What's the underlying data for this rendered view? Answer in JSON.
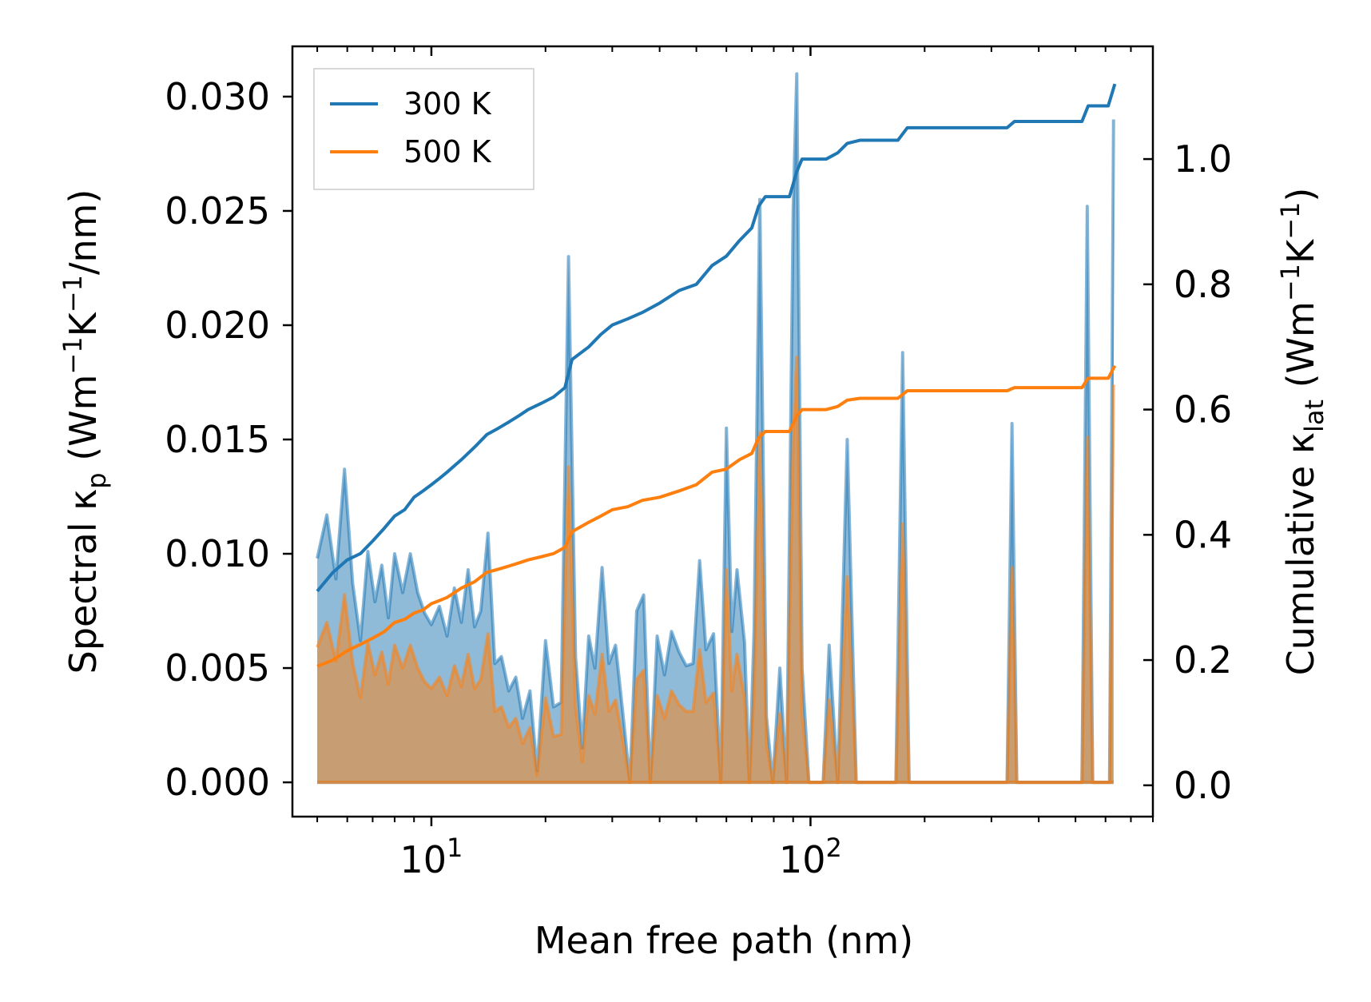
{
  "chart_data": {
    "type": "line",
    "xscale": "log",
    "xlabel": "Mean free path (nm)",
    "ylabel_left": {
      "main": "Spectral κ",
      "sub": "p",
      "units_open": " (Wm",
      "units_exp1": "−1",
      "units_mid": "K",
      "units_exp2": "−1",
      "units_close": "/nm)"
    },
    "ylabel_right": {
      "main": "Cumulative κ",
      "sub": "lat",
      "units_open": " (Wm",
      "units_exp1": "−1",
      "units_mid": "K",
      "units_exp2": "−1",
      "units_close": ")"
    },
    "xlim": [
      4.3,
      800
    ],
    "ylim_left": [
      -0.0015,
      0.0322
    ],
    "ylim_right": [
      -0.05,
      1.18
    ],
    "x_ticks": [
      {
        "value": 10,
        "base": "10",
        "exp": "1"
      },
      {
        "value": 100,
        "base": "10",
        "exp": "2"
      }
    ],
    "y_ticks_left": [
      "0.000",
      "0.005",
      "0.010",
      "0.015",
      "0.020",
      "0.025",
      "0.030"
    ],
    "y_ticks_right": [
      "0.0",
      "0.2",
      "0.4",
      "0.6",
      "0.8",
      "1.0"
    ],
    "legend": {
      "position": "upper-left",
      "entries": [
        "300 K",
        "500 K"
      ]
    },
    "series": [
      {
        "name": "300 K",
        "color": "#1f77b4",
        "spectral": [
          [
            5.0,
            0.0098
          ],
          [
            5.3,
            0.0117
          ],
          [
            5.6,
            0.0089
          ],
          [
            5.9,
            0.0137
          ],
          [
            6.2,
            0.0087
          ],
          [
            6.5,
            0.0062
          ],
          [
            6.8,
            0.0101
          ],
          [
            7.1,
            0.0079
          ],
          [
            7.4,
            0.0095
          ],
          [
            7.7,
            0.0072
          ],
          [
            8.0,
            0.01
          ],
          [
            8.4,
            0.0083
          ],
          [
            8.8,
            0.01
          ],
          [
            9.2,
            0.0083
          ],
          [
            9.6,
            0.0074
          ],
          [
            10.0,
            0.0069
          ],
          [
            10.5,
            0.0077
          ],
          [
            11.0,
            0.0064
          ],
          [
            11.5,
            0.0085
          ],
          [
            12.0,
            0.007
          ],
          [
            12.5,
            0.0093
          ],
          [
            13.0,
            0.0068
          ],
          [
            13.5,
            0.0075
          ],
          [
            14.1,
            0.0109
          ],
          [
            14.7,
            0.0052
          ],
          [
            15.3,
            0.0055
          ],
          [
            16.0,
            0.004
          ],
          [
            16.7,
            0.0046
          ],
          [
            17.4,
            0.0028
          ],
          [
            18.2,
            0.004
          ],
          [
            19.0,
            0.0005
          ],
          [
            20.0,
            0.0062
          ],
          [
            21.0,
            0.0033
          ],
          [
            22.0,
            0.0035
          ],
          [
            23.0,
            0.023
          ],
          [
            24.0,
            0.0055
          ],
          [
            25.0,
            0.0015
          ],
          [
            26.0,
            0.0064
          ],
          [
            27.0,
            0.005
          ],
          [
            28.2,
            0.0094
          ],
          [
            29.4,
            0.0052
          ],
          [
            30.6,
            0.006
          ],
          [
            32.0,
            0.003
          ],
          [
            33.4,
            0.0
          ],
          [
            34.8,
            0.0075
          ],
          [
            36.3,
            0.0082
          ],
          [
            37.8,
            0.0
          ],
          [
            39.4,
            0.0064
          ],
          [
            41.2,
            0.0047
          ],
          [
            43.0,
            0.0066
          ],
          [
            45.0,
            0.0057
          ],
          [
            47.0,
            0.0051
          ],
          [
            49.0,
            0.0052
          ],
          [
            51.0,
            0.0097
          ],
          [
            53.0,
            0.0058
          ],
          [
            55.5,
            0.0065
          ],
          [
            58.0,
            0.0
          ],
          [
            60.0,
            0.0155
          ],
          [
            62.0,
            0.0066
          ],
          [
            64.0,
            0.0093
          ],
          [
            67.0,
            0.0061
          ],
          [
            69.0,
            0.0
          ],
          [
            71.0,
            0.0067
          ],
          [
            73.5,
            0.0255
          ],
          [
            76.5,
            0.0029
          ],
          [
            79.5,
            0.0
          ],
          [
            83.0,
            0.005
          ],
          [
            86.5,
            0.0
          ],
          [
            90.0,
            0.025
          ],
          [
            92.0,
            0.031
          ],
          [
            95.0,
            0.005
          ],
          [
            99.0,
            0.0
          ],
          [
            108.0,
            0.0
          ],
          [
            112.0,
            0.006
          ],
          [
            118.0,
            0.0
          ],
          [
            125.0,
            0.015
          ],
          [
            132.0,
            0.0
          ],
          [
            168.0,
            0.0
          ],
          [
            175.0,
            0.0188
          ],
          [
            182.0,
            0.0
          ],
          [
            330.0,
            0.0
          ],
          [
            340.0,
            0.0157
          ],
          [
            350.0,
            0.0
          ],
          [
            520.0,
            0.0
          ],
          [
            537.0,
            0.0252
          ],
          [
            555.0,
            0.0
          ],
          [
            615.0,
            0.0
          ],
          [
            630.0,
            0.029
          ]
        ],
        "cumulative": [
          [
            5.0,
            0.31
          ],
          [
            5.5,
            0.34
          ],
          [
            6.0,
            0.36
          ],
          [
            6.5,
            0.37
          ],
          [
            7.0,
            0.39
          ],
          [
            7.5,
            0.41
          ],
          [
            8.0,
            0.43
          ],
          [
            8.5,
            0.44
          ],
          [
            9.0,
            0.46
          ],
          [
            9.5,
            0.47
          ],
          [
            10.0,
            0.48
          ],
          [
            10.5,
            0.49
          ],
          [
            11.0,
            0.5
          ],
          [
            12.0,
            0.52
          ],
          [
            13.0,
            0.54
          ],
          [
            14.0,
            0.56
          ],
          [
            15.0,
            0.57
          ],
          [
            16.0,
            0.58
          ],
          [
            17.0,
            0.59
          ],
          [
            18.0,
            0.6
          ],
          [
            19.5,
            0.61
          ],
          [
            21.0,
            0.62
          ],
          [
            22.5,
            0.635
          ],
          [
            23.5,
            0.68
          ],
          [
            26.0,
            0.7
          ],
          [
            28.0,
            0.72
          ],
          [
            30.0,
            0.735
          ],
          [
            33.0,
            0.745
          ],
          [
            36.0,
            0.755
          ],
          [
            40.0,
            0.77
          ],
          [
            45.0,
            0.79
          ],
          [
            50.0,
            0.8
          ],
          [
            55.0,
            0.83
          ],
          [
            60.0,
            0.845
          ],
          [
            65.0,
            0.87
          ],
          [
            70.0,
            0.89
          ],
          [
            73.0,
            0.925
          ],
          [
            76.0,
            0.94
          ],
          [
            88.0,
            0.94
          ],
          [
            92.0,
            0.98
          ],
          [
            95.0,
            1.0
          ],
          [
            110.0,
            1.0
          ],
          [
            118.0,
            1.01
          ],
          [
            125.0,
            1.025
          ],
          [
            135.0,
            1.03
          ],
          [
            170.0,
            1.03
          ],
          [
            180.0,
            1.05
          ],
          [
            330.0,
            1.05
          ],
          [
            345.0,
            1.06
          ],
          [
            520.0,
            1.06
          ],
          [
            540.0,
            1.085
          ],
          [
            610.0,
            1.085
          ],
          [
            635.0,
            1.12
          ]
        ]
      },
      {
        "name": "500 K",
        "color": "#ff7f0e",
        "spectral": [
          [
            5.0,
            0.0059
          ],
          [
            5.3,
            0.007
          ],
          [
            5.6,
            0.0053
          ],
          [
            5.9,
            0.0082
          ],
          [
            6.2,
            0.0052
          ],
          [
            6.5,
            0.0037
          ],
          [
            6.8,
            0.0061
          ],
          [
            7.1,
            0.0047
          ],
          [
            7.4,
            0.0057
          ],
          [
            7.7,
            0.0043
          ],
          [
            8.0,
            0.006
          ],
          [
            8.4,
            0.005
          ],
          [
            8.8,
            0.006
          ],
          [
            9.2,
            0.005
          ],
          [
            9.6,
            0.0044
          ],
          [
            10.0,
            0.0041
          ],
          [
            10.5,
            0.0046
          ],
          [
            11.0,
            0.0038
          ],
          [
            11.5,
            0.0051
          ],
          [
            12.0,
            0.0042
          ],
          [
            12.5,
            0.0056
          ],
          [
            13.0,
            0.0041
          ],
          [
            13.5,
            0.0045
          ],
          [
            14.1,
            0.0065
          ],
          [
            14.7,
            0.0031
          ],
          [
            15.3,
            0.0033
          ],
          [
            16.0,
            0.0024
          ],
          [
            16.7,
            0.0028
          ],
          [
            17.4,
            0.0017
          ],
          [
            18.2,
            0.0024
          ],
          [
            19.0,
            0.0003
          ],
          [
            20.0,
            0.0037
          ],
          [
            21.0,
            0.002
          ],
          [
            22.0,
            0.0021
          ],
          [
            23.0,
            0.0138
          ],
          [
            24.0,
            0.0033
          ],
          [
            25.0,
            0.0009
          ],
          [
            26.0,
            0.0038
          ],
          [
            27.0,
            0.003
          ],
          [
            28.2,
            0.0056
          ],
          [
            29.4,
            0.0031
          ],
          [
            30.6,
            0.0036
          ],
          [
            32.0,
            0.0018
          ],
          [
            33.4,
            0.0
          ],
          [
            34.8,
            0.0045
          ],
          [
            36.3,
            0.0049
          ],
          [
            37.8,
            0.0
          ],
          [
            39.4,
            0.0038
          ],
          [
            41.2,
            0.0028
          ],
          [
            43.0,
            0.004
          ],
          [
            45.0,
            0.0034
          ],
          [
            47.0,
            0.0031
          ],
          [
            49.0,
            0.0031
          ],
          [
            51.0,
            0.0058
          ],
          [
            53.0,
            0.0035
          ],
          [
            55.5,
            0.0039
          ],
          [
            58.0,
            0.0
          ],
          [
            60.0,
            0.0093
          ],
          [
            62.0,
            0.004
          ],
          [
            64.0,
            0.0056
          ],
          [
            67.0,
            0.0037
          ],
          [
            69.0,
            0.0
          ],
          [
            71.0,
            0.004
          ],
          [
            73.5,
            0.0153
          ],
          [
            76.5,
            0.0017
          ],
          [
            79.5,
            0.0
          ],
          [
            83.0,
            0.003
          ],
          [
            86.5,
            0.0
          ],
          [
            90.0,
            0.015
          ],
          [
            92.0,
            0.0186
          ],
          [
            95.0,
            0.003
          ],
          [
            99.0,
            0.0
          ],
          [
            108.0,
            0.0
          ],
          [
            112.0,
            0.0036
          ],
          [
            118.0,
            0.0
          ],
          [
            125.0,
            0.009
          ],
          [
            132.0,
            0.0
          ],
          [
            168.0,
            0.0
          ],
          [
            175.0,
            0.0113
          ],
          [
            182.0,
            0.0
          ],
          [
            330.0,
            0.0
          ],
          [
            340.0,
            0.0094
          ],
          [
            350.0,
            0.0
          ],
          [
            520.0,
            0.0
          ],
          [
            537.0,
            0.0151
          ],
          [
            555.0,
            0.0
          ],
          [
            615.0,
            0.0
          ],
          [
            630.0,
            0.0174
          ]
        ],
        "cumulative": [
          [
            5.0,
            0.19
          ],
          [
            5.5,
            0.2
          ],
          [
            6.0,
            0.215
          ],
          [
            6.5,
            0.225
          ],
          [
            7.0,
            0.235
          ],
          [
            7.5,
            0.245
          ],
          [
            8.0,
            0.26
          ],
          [
            8.5,
            0.265
          ],
          [
            9.0,
            0.275
          ],
          [
            9.5,
            0.28
          ],
          [
            10.0,
            0.29
          ],
          [
            10.5,
            0.295
          ],
          [
            11.0,
            0.3
          ],
          [
            12.0,
            0.315
          ],
          [
            13.0,
            0.325
          ],
          [
            14.0,
            0.34
          ],
          [
            15.0,
            0.345
          ],
          [
            16.0,
            0.35
          ],
          [
            17.0,
            0.355
          ],
          [
            18.0,
            0.36
          ],
          [
            19.5,
            0.365
          ],
          [
            21.0,
            0.37
          ],
          [
            22.5,
            0.38
          ],
          [
            23.5,
            0.405
          ],
          [
            26.0,
            0.42
          ],
          [
            28.0,
            0.43
          ],
          [
            30.0,
            0.44
          ],
          [
            33.0,
            0.445
          ],
          [
            36.0,
            0.455
          ],
          [
            40.0,
            0.46
          ],
          [
            45.0,
            0.47
          ],
          [
            50.0,
            0.48
          ],
          [
            55.0,
            0.5
          ],
          [
            60.0,
            0.505
          ],
          [
            65.0,
            0.52
          ],
          [
            70.0,
            0.53
          ],
          [
            73.0,
            0.555
          ],
          [
            76.0,
            0.565
          ],
          [
            88.0,
            0.565
          ],
          [
            92.0,
            0.59
          ],
          [
            95.0,
            0.6
          ],
          [
            110.0,
            0.6
          ],
          [
            118.0,
            0.605
          ],
          [
            125.0,
            0.615
          ],
          [
            135.0,
            0.618
          ],
          [
            170.0,
            0.618
          ],
          [
            180.0,
            0.63
          ],
          [
            330.0,
            0.63
          ],
          [
            345.0,
            0.635
          ],
          [
            520.0,
            0.635
          ],
          [
            540.0,
            0.65
          ],
          [
            610.0,
            0.65
          ],
          [
            635.0,
            0.67
          ]
        ]
      }
    ]
  }
}
